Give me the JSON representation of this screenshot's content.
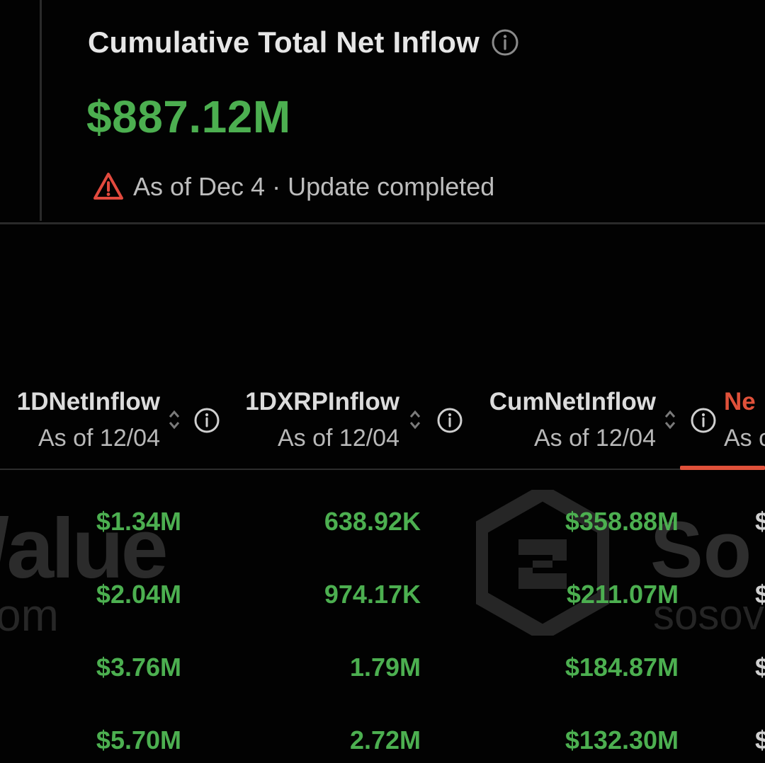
{
  "colors": {
    "positive": "#4caf50",
    "warning": "#e24a3e",
    "accent": "#e0513a",
    "background": "#020202"
  },
  "summary": {
    "title": "Cumulative Total Net Inflow",
    "title_icon": "info-icon",
    "value": "$887.12M",
    "status_icon": "warning-triangle-icon",
    "status_text": "As of Dec 4 · Update completed"
  },
  "watermarks": {
    "value_text": "/alue",
    "om_text": "om",
    "so_text": "So",
    "sosov_text": "sosov",
    "logo_icon": "sosovalue-logo-icon"
  },
  "table": {
    "columns": [
      {
        "name": "1DNetInflow",
        "sub": "As of 12/04"
      },
      {
        "name": "1DXRPInflow",
        "sub": "As of 12/04"
      },
      {
        "name": "CumNetInflow",
        "sub": "As of 12/04"
      },
      {
        "name": "Ne",
        "sub": "As c"
      }
    ],
    "rows": [
      {
        "c1": "$1.34M",
        "c2": "638.92K",
        "c3": "$358.88M",
        "c4": "$"
      },
      {
        "c1": "$2.04M",
        "c2": "974.17K",
        "c3": "$211.07M",
        "c4": "$"
      },
      {
        "c1": "$3.76M",
        "c2": "1.79M",
        "c3": "$184.87M",
        "c4": "$"
      },
      {
        "c1": "$5.70M",
        "c2": "2.72M",
        "c3": "$132.30M",
        "c4": "$"
      }
    ]
  }
}
